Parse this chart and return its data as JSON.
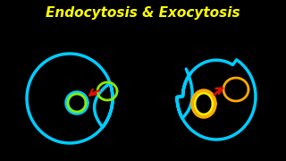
{
  "background_color": "#000000",
  "title": "Endocytosis & Exocytosis",
  "title_color": "#ffff00",
  "title_fontsize": 11,
  "title_fontweight": "bold",
  "cyan_color": "#00ccff",
  "green_color": "#88ee00",
  "green2_color": "#00ee88",
  "orange_color": "#ffaa00",
  "yellow_color": "#ffee00",
  "red_color": "#dd1100",
  "lw_cell": 2.5,
  "lw_vesicle": 2.0
}
